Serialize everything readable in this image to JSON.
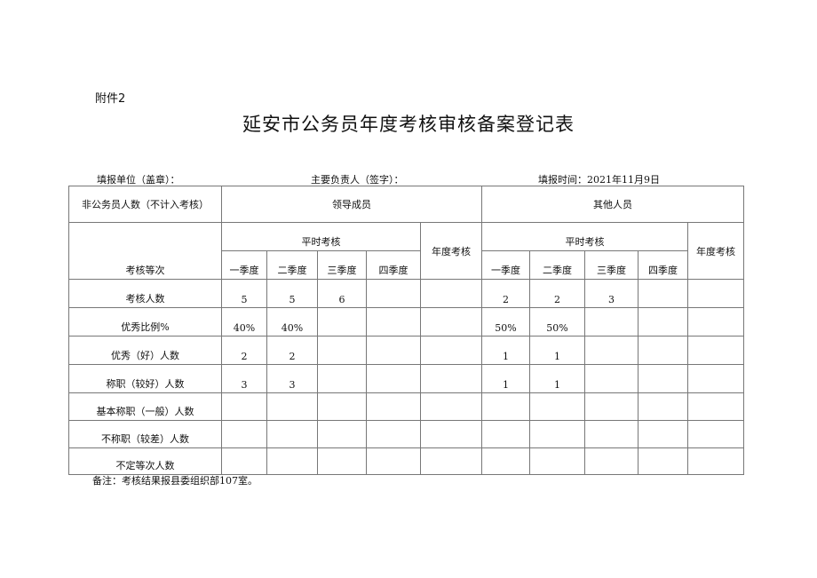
{
  "attachment_label": "附件2",
  "title": "延安市公务员年度考核审核备案登记表",
  "meta": {
    "unit": "填报单位（盖章）：",
    "leader": "主要负责人（签字）：",
    "date": "填报时间：2021年11月9日"
  },
  "header": {
    "non_civil": "非公务员人数（不计入考核）",
    "leaders": "领导成员",
    "others": "其他人员",
    "regular": "平时考核",
    "annual": "年度考核",
    "grade": "考核等次",
    "quarters": [
      "一季度",
      "二季度",
      "三季度",
      "四季度"
    ]
  },
  "rows": [
    {
      "label": "考核人数",
      "leaders": [
        "5",
        "5",
        "6",
        "",
        ""
      ],
      "others": [
        "2",
        "2",
        "3",
        "",
        ""
      ]
    },
    {
      "label": "优秀比例%",
      "leaders": [
        "40%",
        "40%",
        "",
        "",
        ""
      ],
      "others": [
        "50%",
        "50%",
        "",
        "",
        ""
      ]
    },
    {
      "label": "优秀（好）人数",
      "leaders": [
        "2",
        "2",
        "",
        "",
        ""
      ],
      "others": [
        "1",
        "1",
        "",
        "",
        ""
      ]
    },
    {
      "label": "称职（较好）人数",
      "leaders": [
        "3",
        "3",
        "",
        "",
        ""
      ],
      "others": [
        "1",
        "1",
        "",
        "",
        ""
      ]
    },
    {
      "label": "基本称职（一般）人数",
      "leaders": [
        "",
        "",
        "",
        "",
        ""
      ],
      "others": [
        "",
        "",
        "",
        "",
        ""
      ]
    },
    {
      "label": "不称职（较差）人数",
      "leaders": [
        "",
        "",
        "",
        "",
        ""
      ],
      "others": [
        "",
        "",
        "",
        "",
        ""
      ]
    },
    {
      "label": "不定等次人数",
      "leaders": [
        "",
        "",
        "",
        "",
        ""
      ],
      "others": [
        "",
        "",
        "",
        "",
        ""
      ]
    }
  ],
  "note": "备注：考核结果报县委组织部107室。"
}
